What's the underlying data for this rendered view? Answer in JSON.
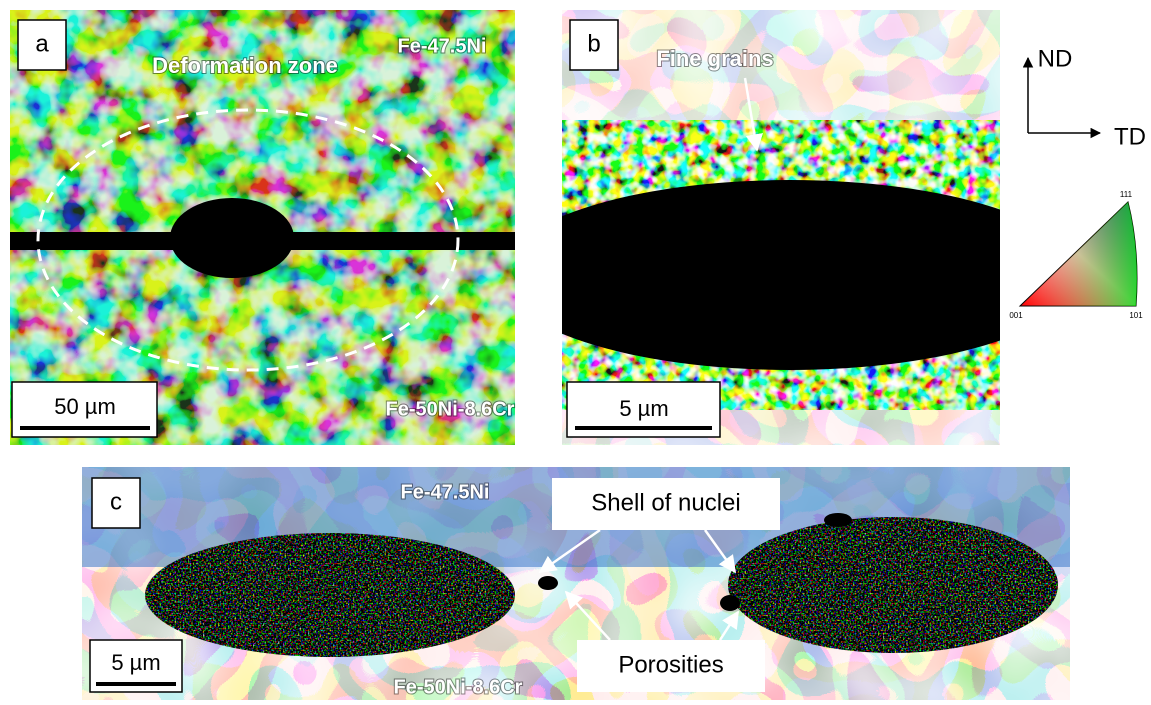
{
  "panels": [
    {
      "label": "a",
      "top_material": "Fe-47.5Ni",
      "annotation": "Deformation zone",
      "scale_bar": "50 µm",
      "bottom_material": "Fe-50Ni-8.6Cr"
    },
    {
      "label": "b",
      "annotation": "Fine grains",
      "scale_bar": "5 µm"
    },
    {
      "label": "c",
      "top_material": "Fe-47.5Ni",
      "annotation_top": "Shell of nuclei",
      "annotation_bottom": "Porosities",
      "scale_bar": "5 µm",
      "bottom_material": "Fe-50Ni-8.6Cr"
    }
  ],
  "orientation": {
    "vertical": "ND",
    "horizontal": "TD"
  },
  "ipf_legend": {
    "top": "111",
    "left": "001",
    "right": "101"
  }
}
